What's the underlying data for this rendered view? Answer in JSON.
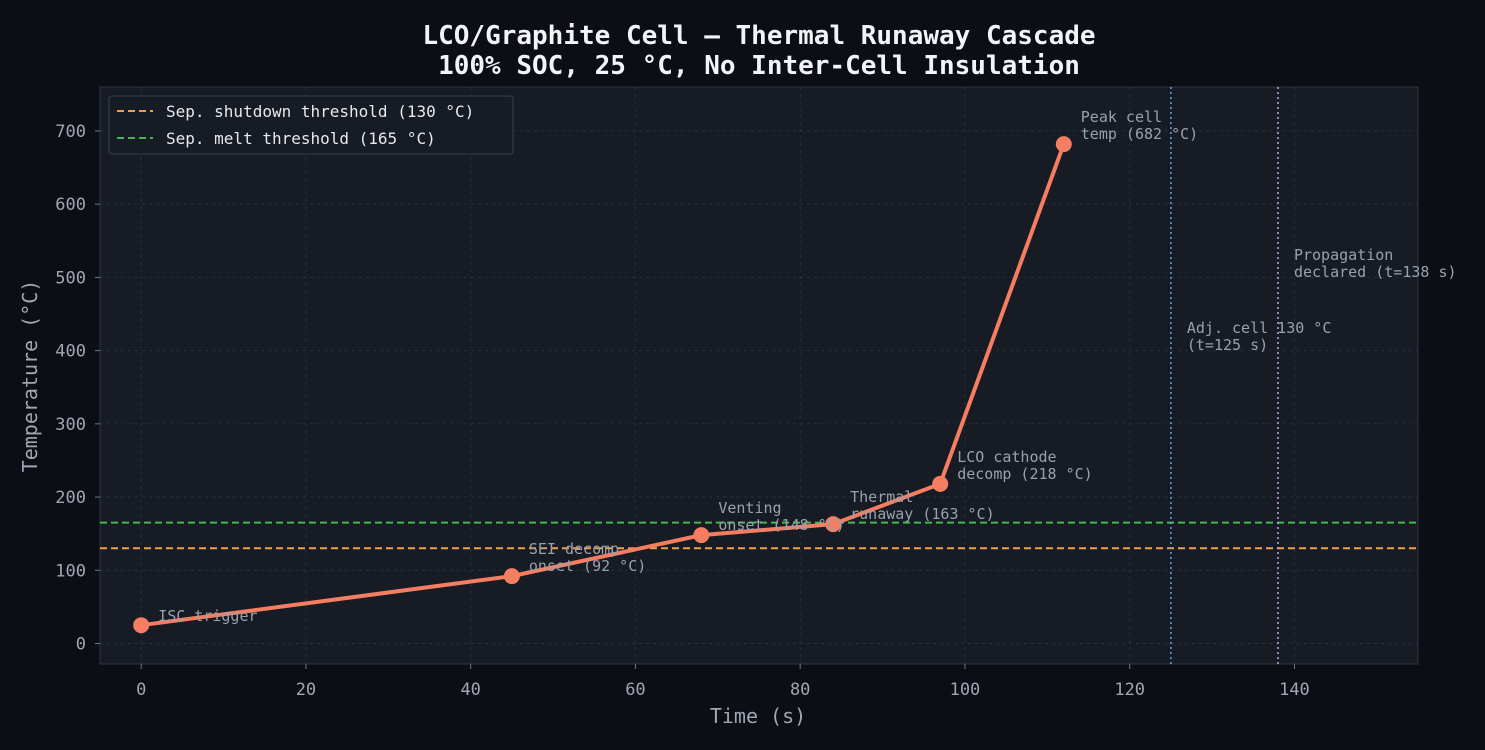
{
  "chart_data": {
    "type": "line",
    "title": "LCO/Graphite Cell — Thermal Runaway Cascade",
    "subtitle": "100% SOC, 25 °C, No Inter-Cell Insulation",
    "xlabel": "Time (s)",
    "ylabel": "Temperature (°C)",
    "xlim": [
      -5,
      155
    ],
    "ylim": [
      -28,
      760
    ],
    "xticks": [
      0,
      20,
      40,
      60,
      80,
      100,
      120,
      140
    ],
    "yticks": [
      0,
      100,
      200,
      300,
      400,
      500,
      600,
      700
    ],
    "grid": true,
    "legend_position": "top-left",
    "series": [
      {
        "color": "#f47d62",
        "x": [
          0,
          45,
          68,
          84,
          97,
          112
        ],
        "y": [
          25,
          92,
          148,
          163,
          218,
          682
        ]
      }
    ],
    "point_annotations": [
      {
        "x": 0,
        "y": 25,
        "lines": [
          "ISC trigger"
        ]
      },
      {
        "x": 45,
        "y": 92,
        "lines": [
          "SEI decomp",
          "onset (92 °C)"
        ]
      },
      {
        "x": 68,
        "y": 148,
        "lines": [
          "Venting",
          "onset (148 °C)"
        ]
      },
      {
        "x": 84,
        "y": 163,
        "lines": [
          "Thermal",
          "runaway (163 °C)"
        ]
      },
      {
        "x": 97,
        "y": 218,
        "lines": [
          "LCO cathode",
          "decomp (218 °C)"
        ]
      },
      {
        "x": 112,
        "y": 682,
        "lines": [
          "Peak cell",
          "temp (682 °C)"
        ]
      }
    ],
    "hlines": [
      {
        "y": 130,
        "color": "#f0a04b",
        "label": "Sep. shutdown threshold (130 °C)"
      },
      {
        "y": 165,
        "color": "#3fb950",
        "label": "Sep. melt threshold (165 °C)"
      }
    ],
    "vlines": [
      {
        "x": 125,
        "color": "#58a6ff",
        "lines": [
          "Adj. cell 130 °C",
          "(t=125 s)"
        ]
      },
      {
        "x": 138,
        "color": "#c8a2f5",
        "lines": [
          "Propagation",
          "declared (t=138 s)"
        ]
      }
    ]
  },
  "colors": {
    "background": "#0b0e14",
    "plot_background": "#171b23",
    "grid": "#2a303b",
    "annotation_text": "#9ba1ab",
    "adj_cell_text": "#58a6ff",
    "propagation_text": "#c8a2f5"
  }
}
